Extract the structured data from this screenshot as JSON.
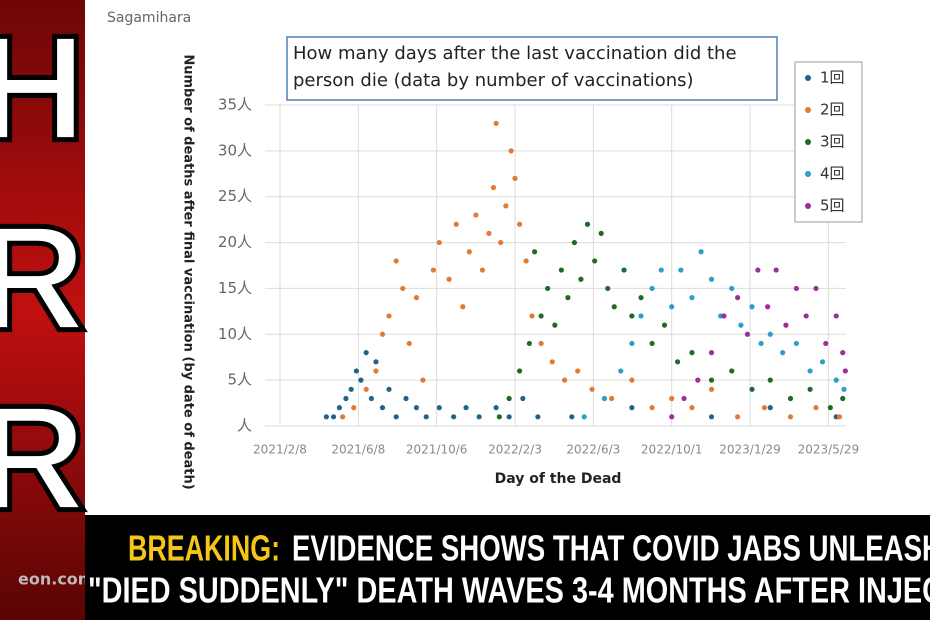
{
  "source_label": "Sagamihara",
  "logo_letters": [
    "H",
    "R",
    "R"
  ],
  "site": "eon.com",
  "headline": {
    "tag": "BREAKING:",
    "line1": "EVIDENCE SHOWS THAT COVID JABS UNLEASH",
    "line2": "\"DIED SUDDENLY\" DEATH WAVES 3-4 MONTHS AFTER INJEC"
  },
  "chart_data": {
    "type": "scatter",
    "title": "How many days after the last vaccination did the person die (data by number of vaccinations)",
    "x_label": "Day of the Dead",
    "y_label": "Number of deaths after final vaccination (by date of death)",
    "xlim": [
      "2021/2/8",
      "2023/6/25"
    ],
    "xticks": [
      "2021/2/8",
      "2021/6/8",
      "2021/10/6",
      "2022/2/3",
      "2022/6/3",
      "2022/10/1",
      "2023/1/29",
      "2023/5/29"
    ],
    "ylim": [
      0,
      35
    ],
    "yticks": [
      {
        "value": 0,
        "label": "人"
      },
      {
        "value": 5,
        "label": "5人"
      },
      {
        "value": 10,
        "label": "10人"
      },
      {
        "value": 15,
        "label": "15人"
      },
      {
        "value": 20,
        "label": "20人"
      },
      {
        "value": 25,
        "label": "25人"
      },
      {
        "value": 30,
        "label": "30人"
      },
      {
        "value": 35,
        "label": "35人"
      }
    ],
    "grid": true,
    "legend": "right",
    "series": [
      {
        "name": "1回",
        "color": "#20648c",
        "x": [
          "2021/4/20",
          "2021/5/1",
          "2021/5/10",
          "2021/5/20",
          "2021/5/28",
          "2021/6/5",
          "2021/6/12",
          "2021/6/20",
          "2021/6/28",
          "2021/7/5",
          "2021/7/15",
          "2021/7/25",
          "2021/8/5",
          "2021/8/20",
          "2021/9/5",
          "2021/9/20",
          "2021/10/10",
          "2021/11/1",
          "2021/11/20",
          "2021/12/10",
          "2022/1/5",
          "2022/1/25",
          "2022/2/15",
          "2022/3/10",
          "2022/5/1",
          "2022/8/1",
          "2022/12/1",
          "2023/3/1",
          "2023/6/10"
        ],
        "values": [
          1,
          1,
          2,
          3,
          4,
          6,
          5,
          8,
          3,
          7,
          2,
          4,
          1,
          3,
          2,
          1,
          2,
          1,
          2,
          1,
          2,
          1,
          3,
          1,
          1,
          2,
          1,
          2,
          1
        ]
      },
      {
        "name": "2回",
        "color": "#e07a35",
        "x": [
          "2021/5/15",
          "2021/6/1",
          "2021/6/20",
          "2021/7/5",
          "2021/7/15",
          "2021/7/25",
          "2021/8/5",
          "2021/8/15",
          "2021/8/25",
          "2021/9/5",
          "2021/9/15",
          "2021/10/1",
          "2021/10/10",
          "2021/10/25",
          "2021/11/5",
          "2021/11/15",
          "2021/11/25",
          "2021/12/5",
          "2021/12/15",
          "2021/12/25",
          "2022/1/1",
          "2022/1/5",
          "2022/1/12",
          "2022/1/20",
          "2022/1/28",
          "2022/2/3",
          "2022/2/10",
          "2022/2/20",
          "2022/3/1",
          "2022/3/15",
          "2022/4/1",
          "2022/4/20",
          "2022/5/10",
          "2022/6/1",
          "2022/7/1",
          "2022/8/1",
          "2022/9/1",
          "2022/10/1",
          "2022/11/1",
          "2022/12/1",
          "2023/1/10",
          "2023/2/20",
          "2023/4/1",
          "2023/5/10",
          "2023/6/15"
        ],
        "values": [
          1,
          2,
          4,
          6,
          10,
          12,
          18,
          15,
          9,
          14,
          5,
          17,
          20,
          16,
          22,
          13,
          19,
          23,
          17,
          21,
          26,
          33,
          20,
          24,
          30,
          27,
          22,
          18,
          12,
          9,
          7,
          5,
          6,
          4,
          3,
          5,
          2,
          3,
          2,
          4,
          1,
          2,
          1,
          2,
          1
        ]
      },
      {
        "name": "3回",
        "color": "#1d6b27",
        "x": [
          "2022/1/10",
          "2022/1/25",
          "2022/2/10",
          "2022/2/25",
          "2022/3/5",
          "2022/3/15",
          "2022/3/25",
          "2022/4/5",
          "2022/4/15",
          "2022/4/25",
          "2022/5/5",
          "2022/5/15",
          "2022/5/25",
          "2022/6/5",
          "2022/6/15",
          "2022/6/25",
          "2022/7/5",
          "2022/7/20",
          "2022/8/1",
          "2022/8/15",
          "2022/9/1",
          "2022/9/20",
          "2022/10/10",
          "2022/11/1",
          "2022/12/1",
          "2023/1/1",
          "2023/2/1",
          "2023/3/1",
          "2023/4/1",
          "2023/5/1",
          "2023/6/1",
          "2023/6/20"
        ],
        "values": [
          1,
          3,
          6,
          9,
          19,
          12,
          15,
          11,
          17,
          14,
          20,
          16,
          22,
          18,
          21,
          15,
          13,
          17,
          12,
          14,
          9,
          11,
          7,
          8,
          5,
          6,
          4,
          5,
          3,
          4,
          2,
          3
        ]
      },
      {
        "name": "4回",
        "color": "#2b9fc9",
        "x": [
          "2022/5/20",
          "2022/6/20",
          "2022/7/15",
          "2022/8/1",
          "2022/8/15",
          "2022/9/1",
          "2022/9/15",
          "2022/10/1",
          "2022/10/15",
          "2022/11/1",
          "2022/11/15",
          "2022/12/1",
          "2022/12/15",
          "2023/1/1",
          "2023/1/15",
          "2023/2/1",
          "2023/2/15",
          "2023/3/1",
          "2023/3/20",
          "2023/4/10",
          "2023/5/1",
          "2023/5/20",
          "2023/6/10",
          "2023/6/22"
        ],
        "values": [
          1,
          3,
          6,
          9,
          12,
          15,
          17,
          13,
          17,
          14,
          19,
          16,
          12,
          15,
          11,
          13,
          9,
          10,
          8,
          9,
          6,
          7,
          5,
          4
        ]
      },
      {
        "name": "5回",
        "color": "#9a2f9c",
        "x": [
          "2022/10/1",
          "2022/10/20",
          "2022/11/10",
          "2022/12/1",
          "2022/12/20",
          "2023/1/10",
          "2023/1/25",
          "2023/2/10",
          "2023/2/25",
          "2023/3/10",
          "2023/3/25",
          "2023/4/10",
          "2023/4/25",
          "2023/5/10",
          "2023/5/25",
          "2023/6/10",
          "2023/6/20",
          "2023/6/24"
        ],
        "values": [
          1,
          3,
          5,
          8,
          12,
          14,
          10,
          17,
          13,
          17,
          11,
          15,
          12,
          15,
          9,
          12,
          8,
          6
        ]
      }
    ]
  }
}
